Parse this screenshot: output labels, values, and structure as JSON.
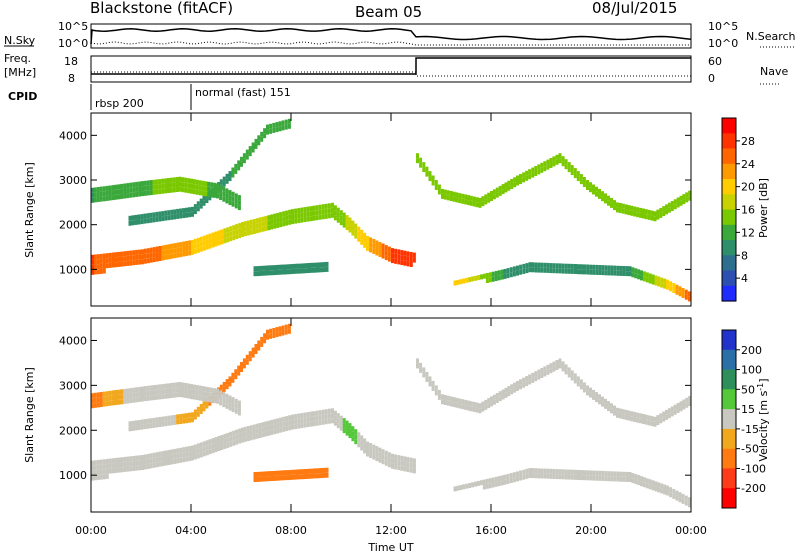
{
  "header": {
    "station": "Blackstone (fitACF)",
    "beam": "Beam 05",
    "date": "08/Jul/2015"
  },
  "top_panels": {
    "nsky_label": "N.Sky",
    "nsearch_label": "N.Search",
    "freq_label": "Freq.",
    "freq_unit": "[MHz]",
    "nave_label": "Nave",
    "cpid_label": "CPID",
    "nsky_ticks": [
      "10^5",
      "10^0"
    ],
    "nsearch_ticks": [
      "10^5",
      "10^0"
    ],
    "freq_ticks": [
      "18",
      "8"
    ],
    "nave_ticks": [
      "60",
      "0"
    ],
    "cpid_segments": [
      {
        "start": 0,
        "end": 4,
        "label": "rbsp 200"
      },
      {
        "start": 4,
        "end": 24,
        "label": "normal (fast) 151"
      }
    ]
  },
  "power_colorbar": {
    "label": "Power [dB]",
    "ticks": [
      "28",
      "24",
      "20",
      "16",
      "12",
      "8",
      "4"
    ],
    "colors": [
      "#ff0000",
      "#ff3300",
      "#ff6600",
      "#ff9900",
      "#ffcc00",
      "#c8d200",
      "#7ac800",
      "#3aa83a",
      "#2f8f6a",
      "#2e6f8f",
      "#2c4fb0",
      "#1f2bff"
    ]
  },
  "velocity_colorbar": {
    "label_main": "Velocity [m s",
    "label_sup": "-1",
    "label_end": "]",
    "ticks": [
      "200",
      "100",
      "50",
      "15",
      "-15",
      "-50",
      "-100",
      "-200"
    ],
    "colors": [
      "#2233cc",
      "#2a6fa8",
      "#2e8f5a",
      "#55c83a",
      "#c8c8c0",
      "#f2a81e",
      "#ff7a10",
      "#ff3b1a",
      "#ff0000"
    ]
  },
  "chart_data": [
    {
      "type": "heatmap",
      "title": "",
      "quantity": "Power [dB]",
      "xlabel": "Time UT",
      "ylabel": "Slant Range [km]",
      "xlim": [
        0,
        24
      ],
      "ylim": [
        180,
        4500
      ],
      "x_tick_labels": [
        "00:00",
        "04:00",
        "08:00",
        "12:00",
        "16:00",
        "20:00",
        "00:00"
      ],
      "y_tick_labels": [
        "1000",
        "2000",
        "3000",
        "4000"
      ],
      "scale": [
        0,
        30
      ],
      "bands": [
        {
          "name": "main",
          "points": [
            [
              0,
              1150,
              350,
              25
            ],
            [
              2,
              1300,
              300,
              24
            ],
            [
              4,
              1500,
              320,
              20
            ],
            [
              6,
              1900,
              320,
              16
            ],
            [
              8,
              2200,
              300,
              14
            ],
            [
              9.6,
              2350,
              280,
              13
            ],
            [
              10.3,
              2000,
              320,
              16
            ],
            [
              11,
              1600,
              300,
              20
            ],
            [
              12,
              1350,
              250,
              25
            ],
            [
              13,
              1250,
              220,
              26
            ]
          ]
        },
        {
          "name": "rising",
          "points": [
            [
              1.5,
              2100,
              200,
              10
            ],
            [
              4,
              2300,
              200,
              10
            ],
            [
              5.5,
              3100,
              200,
              10
            ],
            [
              7,
              4150,
              180,
              12
            ],
            [
              8,
              4300,
              180,
              12
            ]
          ]
        },
        {
          "name": "upper",
          "points": [
            [
              0,
              2700,
              250,
              10
            ],
            [
              2,
              2850,
              250,
              12
            ],
            [
              3.5,
              2950,
              250,
              14
            ],
            [
              5,
              2800,
              250,
              12
            ],
            [
              6,
              2500,
              250,
              12
            ]
          ]
        },
        {
          "name": "low",
          "points": [
            [
              6.5,
              1000,
              140,
              9
            ],
            [
              9.5,
              1100,
              140,
              9
            ]
          ]
        },
        {
          "name": "right",
          "points": [
            [
              13,
              3500,
              200,
              14
            ],
            [
              14,
              2700,
              200,
              14
            ],
            [
              15.5,
              2500,
              200,
              13
            ],
            [
              17,
              3000,
              200,
              13
            ],
            [
              18.7,
              3500,
              200,
              13
            ],
            [
              19.8,
              2900,
              200,
              13
            ],
            [
              21,
              2400,
              200,
              14
            ],
            [
              22.5,
              2200,
              200,
              15
            ],
            [
              24,
              2700,
              200,
              15
            ]
          ]
        },
        {
          "name": "right_low",
          "points": [
            [
              14.5,
              700,
              100,
              20
            ],
            [
              16.5,
              950,
              120,
              10
            ],
            [
              17.5,
              1100,
              120,
              10
            ],
            [
              21.5,
              1000,
              140,
              10
            ],
            [
              23,
              700,
              140,
              18
            ],
            [
              24,
              400,
              140,
              25
            ]
          ]
        }
      ]
    },
    {
      "type": "heatmap",
      "title": "",
      "quantity": "Velocity [m s-1]",
      "xlabel": "Time UT",
      "ylabel": "Slant Range [km]",
      "xlim": [
        0,
        24
      ],
      "ylim": [
        180,
        4500
      ],
      "x_tick_labels": [
        "00:00",
        "04:00",
        "08:00",
        "12:00",
        "16:00",
        "20:00",
        "00:00"
      ],
      "y_tick_labels": [
        "1000",
        "2000",
        "3000",
        "4000"
      ],
      "scale": [
        -250,
        250
      ],
      "bands": [
        {
          "name": "main",
          "points": [
            [
              0,
              1150,
              350,
              0
            ],
            [
              2,
              1300,
              300,
              0
            ],
            [
              4,
              1500,
              320,
              0
            ],
            [
              6,
              1900,
              320,
              0
            ],
            [
              8,
              2200,
              300,
              0
            ],
            [
              9.6,
              2350,
              280,
              0
            ],
            [
              10.3,
              2000,
              320,
              30
            ],
            [
              11,
              1600,
              300,
              0
            ],
            [
              12,
              1350,
              250,
              0
            ],
            [
              13,
              1250,
              220,
              0
            ]
          ]
        },
        {
          "name": "rising",
          "points": [
            [
              1.5,
              2100,
              200,
              0
            ],
            [
              4,
              2300,
              200,
              -20
            ],
            [
              5.5,
              3100,
              200,
              -50
            ],
            [
              7,
              4150,
              180,
              -50
            ],
            [
              8,
              4300,
              180,
              -30
            ]
          ]
        },
        {
          "name": "upper",
          "points": [
            [
              0,
              2700,
              250,
              -40
            ],
            [
              2,
              2850,
              250,
              0
            ],
            [
              3.5,
              2950,
              250,
              0
            ],
            [
              5,
              2800,
              250,
              0
            ],
            [
              6,
              2500,
              250,
              0
            ]
          ]
        },
        {
          "name": "low",
          "points": [
            [
              6.5,
              1000,
              140,
              -40
            ],
            [
              9.5,
              1100,
              140,
              -40
            ]
          ]
        },
        {
          "name": "right",
          "points": [
            [
              13,
              3500,
              200,
              0
            ],
            [
              14,
              2700,
              200,
              0
            ],
            [
              15.5,
              2500,
              200,
              0
            ],
            [
              17,
              3000,
              200,
              0
            ],
            [
              18.7,
              3500,
              200,
              0
            ],
            [
              19.8,
              2900,
              200,
              0
            ],
            [
              21,
              2400,
              200,
              0
            ],
            [
              22.5,
              2200,
              200,
              0
            ],
            [
              24,
              2700,
              200,
              0
            ]
          ]
        },
        {
          "name": "right_low",
          "points": [
            [
              14.5,
              700,
              100,
              0
            ],
            [
              16.5,
              950,
              120,
              0
            ],
            [
              17.5,
              1100,
              120,
              0
            ],
            [
              21.5,
              1000,
              140,
              0
            ],
            [
              23,
              700,
              140,
              0
            ],
            [
              24,
              400,
              140,
              0
            ]
          ]
        }
      ]
    }
  ]
}
